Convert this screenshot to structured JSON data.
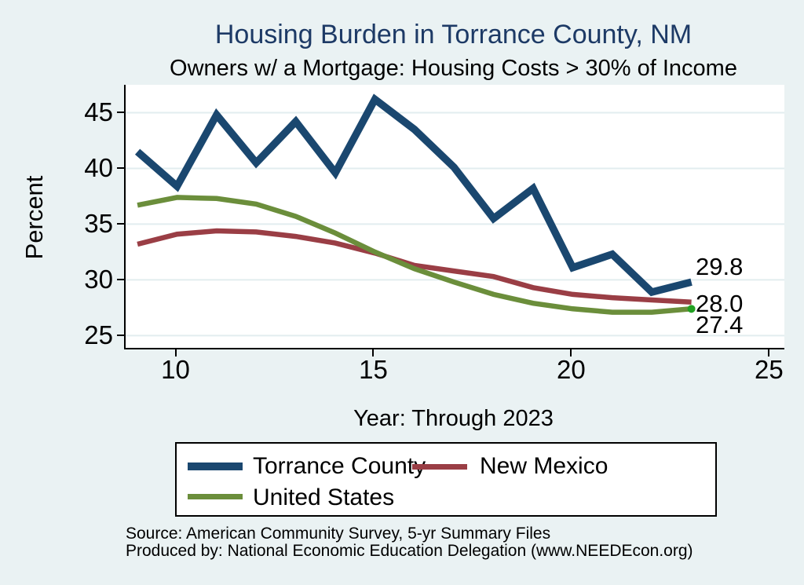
{
  "title": "Housing Burden in Torrance County, NM",
  "subtitle": "Owners w/ a Mortgage: Housing Costs > 30% of Income",
  "colors": {
    "background": "#eaf2f3",
    "plot_background": "#ffffff",
    "gridline": "#e2edef",
    "axis": "#000000",
    "title_text": "#1d3a66",
    "torrance_county": "#1a476f",
    "new_mexico": "#9a3e45",
    "united_states": "#6b8e3b",
    "us_end_marker": "#22a022"
  },
  "chart_data": {
    "type": "line",
    "x": [
      9,
      10,
      11,
      12,
      13,
      14,
      15,
      16,
      17,
      18,
      19,
      20,
      21,
      22,
      23
    ],
    "series": [
      {
        "name": "Torrance County",
        "color": "#1a476f",
        "stroke_width": 9.5,
        "values": [
          41.5,
          38.4,
          44.8,
          40.5,
          44.2,
          39.6,
          46.2,
          43.5,
          40.1,
          35.5,
          38.2,
          31.1,
          32.3,
          28.9,
          29.8
        ],
        "end_label": "29.8"
      },
      {
        "name": "New Mexico",
        "color": "#9a3e45",
        "stroke_width": 6.5,
        "values": [
          33.2,
          34.1,
          34.4,
          34.3,
          33.9,
          33.3,
          32.4,
          31.3,
          30.8,
          30.3,
          29.3,
          28.7,
          28.4,
          28.2,
          28.0
        ],
        "end_label": "28.0"
      },
      {
        "name": "United States",
        "color": "#6b8e3b",
        "stroke_width": 6.5,
        "values": [
          36.7,
          37.4,
          37.3,
          36.8,
          35.7,
          34.2,
          32.5,
          31.0,
          29.8,
          28.7,
          27.9,
          27.4,
          27.1,
          27.1,
          27.4
        ],
        "end_label": "27.4",
        "end_marker_color": "#22a022"
      }
    ],
    "title": "Housing Burden in Torrance County, NM",
    "subtitle": "Owners w/ a Mortgage: Housing Costs > 30% of Income",
    "xlabel": "Year: Through 2023",
    "ylabel": "Percent",
    "x_ticks": [
      10,
      15,
      20,
      25
    ],
    "y_ticks": [
      25,
      30,
      35,
      40,
      45
    ],
    "xlim": [
      8.7,
      25.35
    ],
    "ylim": [
      23.9,
      47.5
    ],
    "grid": "horizontal",
    "legend_position": "bottom"
  },
  "footer": {
    "source": "Source: American Community Survey, 5-yr Summary Files",
    "produced_by": "Produced by: National Economic Education Delegation (www.NEEDEcon.org)"
  }
}
